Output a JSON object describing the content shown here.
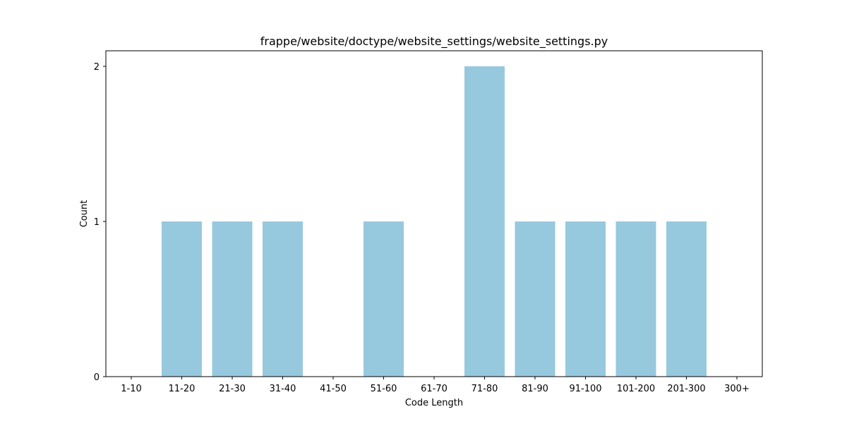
{
  "chart_data": {
    "type": "bar",
    "title": "frappe/website/doctype/website_settings/website_settings.py",
    "xlabel": "Code Length",
    "ylabel": "Count",
    "categories": [
      "1-10",
      "11-20",
      "21-30",
      "31-40",
      "41-50",
      "51-60",
      "61-70",
      "71-80",
      "81-90",
      "91-100",
      "101-200",
      "201-300",
      "300+"
    ],
    "values": [
      0,
      1,
      1,
      1,
      0,
      1,
      0,
      2,
      1,
      1,
      1,
      1,
      0
    ],
    "ylim": [
      0,
      2.1
    ],
    "yticks": [
      0,
      1,
      2
    ],
    "grid": false,
    "bar_color": "#96c9de"
  }
}
